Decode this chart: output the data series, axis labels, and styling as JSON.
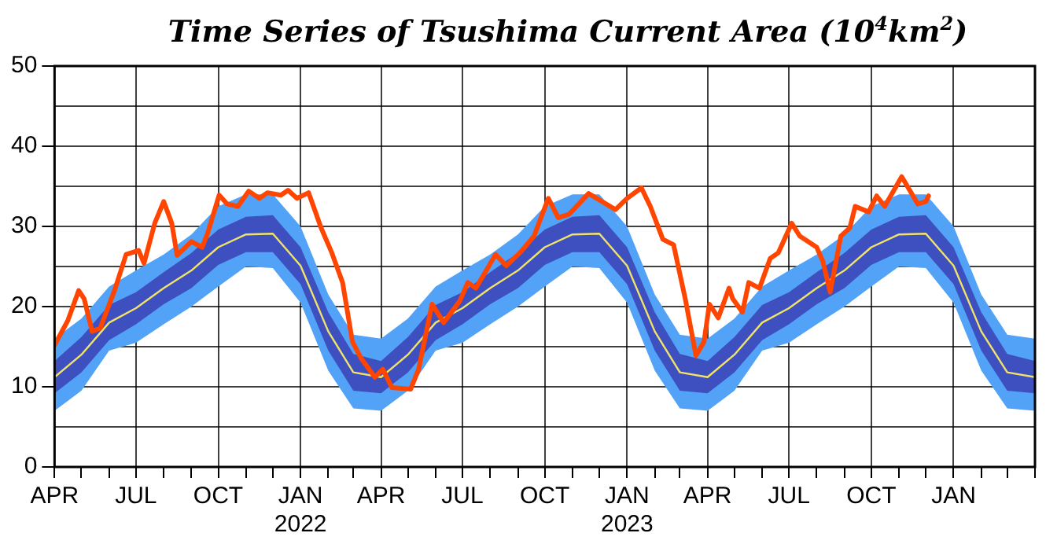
{
  "chart_data": {
    "type": "line",
    "title": "Time Series of Tsushima Current Area (10$^{4}$km$^{2}$)",
    "xlim": [
      "2021-04-01",
      "2024-04-01"
    ],
    "xticks": [
      {
        "value": "2021-04-01",
        "label": "APR"
      },
      {
        "value": "2021-05-01",
        "label": null
      },
      {
        "value": "2021-06-01",
        "label": null
      },
      {
        "value": "2021-07-01",
        "label": "JUL"
      },
      {
        "value": "2021-08-01",
        "label": null
      },
      {
        "value": "2021-09-01",
        "label": null
      },
      {
        "value": "2021-10-01",
        "label": "OCT"
      },
      {
        "value": "2021-11-01",
        "label": null
      },
      {
        "value": "2021-12-01",
        "label": null
      },
      {
        "value": "2022-01-01",
        "label": "JAN\n2022"
      },
      {
        "value": "2022-02-01",
        "label": null
      },
      {
        "value": "2022-03-01",
        "label": null
      },
      {
        "value": "2022-04-01",
        "label": "APR"
      },
      {
        "value": "2022-05-01",
        "label": null
      },
      {
        "value": "2022-06-01",
        "label": null
      },
      {
        "value": "2022-07-01",
        "label": "JUL"
      },
      {
        "value": "2022-08-01",
        "label": null
      },
      {
        "value": "2022-09-01",
        "label": null
      },
      {
        "value": "2022-10-01",
        "label": "OCT"
      },
      {
        "value": "2022-11-01",
        "label": null
      },
      {
        "value": "2022-12-01",
        "label": null
      },
      {
        "value": "2023-01-01",
        "label": "JAN\n2023"
      },
      {
        "value": "2023-02-01",
        "label": null
      },
      {
        "value": "2023-03-01",
        "label": null
      },
      {
        "value": "2023-04-01",
        "label": "APR"
      },
      {
        "value": "2023-05-01",
        "label": null
      },
      {
        "value": "2023-06-01",
        "label": null
      },
      {
        "value": "2023-07-01",
        "label": "JUL"
      },
      {
        "value": "2023-08-01",
        "label": null
      },
      {
        "value": "2023-09-01",
        "label": null
      },
      {
        "value": "2023-10-01",
        "label": "OCT"
      },
      {
        "value": "2023-11-01",
        "label": null
      },
      {
        "value": "2023-12-01",
        "label": null
      },
      {
        "value": "2024-01-01",
        "label": "JAN"
      },
      {
        "value": "2024-02-01",
        "label": null
      },
      {
        "value": "2024-03-01",
        "label": null
      },
      {
        "value": "2024-04-01",
        "label": null
      }
    ],
    "ylim": [
      0,
      50
    ],
    "yticks": [
      0,
      {
        "value": 5,
        "label": null
      },
      10,
      {
        "value": 15,
        "label": null
      },
      20,
      {
        "value": 25,
        "label": null
      },
      30,
      {
        "value": 35,
        "label": null
      },
      40,
      {
        "value": 45,
        "label": null
      },
      50
    ],
    "grid": true,
    "legend": false,
    "marker": "none",
    "line_style": "solid",
    "series": [
      {
        "type": "area",
        "color": "#52a3f7",
        "values": [
          null,
          null,
          null,
          null,
          null,
          null,
          null,
          null,
          null,
          null,
          null,
          null,
          null,
          null,
          null,
          null,
          null,
          null,
          null,
          null,
          null,
          null,
          null,
          null,
          null,
          null,
          null,
          null,
          null,
          null,
          null,
          null,
          null,
          null,
          null,
          null,
          null
        ],
        "x": [
          "2021-04-01",
          "2021-05-01",
          "2021-06-01",
          "2021-07-01",
          "2021-08-01",
          "2021-09-01",
          "2021-10-01",
          "2021-11-01",
          "2021-12-01",
          "2022-01-01",
          "2022-02-01",
          "2022-03-01",
          "2022-04-01",
          "2022-05-01",
          "2022-06-01",
          "2022-07-01",
          "2022-08-01",
          "2022-09-01",
          "2022-10-01",
          "2022-11-01",
          "2022-12-01",
          "2023-01-01",
          "2023-02-01",
          "2023-03-01",
          "2023-04-01",
          "2023-05-01",
          "2023-06-01",
          "2023-07-01",
          "2023-08-01",
          "2023-09-01",
          "2023-10-01",
          "2023-11-01",
          "2023-12-01",
          "2024-01-01",
          "2024-02-01",
          "2024-03-01",
          "2024-04-01"
        ],
        "upper": [
          16,
          18.5,
          22.5,
          24.5,
          26.5,
          29,
          32.5,
          34,
          34,
          30,
          21.5,
          16.5,
          16,
          18.5,
          22.5,
          24.5,
          26.5,
          29,
          32.5,
          34,
          34,
          30,
          21.5,
          16.5,
          16,
          18.5,
          22.5,
          24.5,
          26.5,
          29,
          32.5,
          34,
          34,
          30,
          21.5,
          16.5,
          16
        ],
        "lower": [
          7,
          9.5,
          14.5,
          15.5,
          17.8,
          20,
          22.5,
          25,
          24.8,
          20.5,
          12,
          7.3,
          7,
          9.5,
          14.5,
          15.5,
          17.8,
          20,
          22.5,
          25,
          24.8,
          20.5,
          12,
          7.3,
          7,
          9.5,
          14.5,
          15.5,
          17.8,
          20,
          22.5,
          25,
          24.8,
          20.5,
          12,
          7.3,
          7
        ]
      },
      {
        "type": "area",
        "color": "#3e4fc0",
        "values": [
          null,
          null,
          null,
          null,
          null,
          null,
          null,
          null,
          null,
          null,
          null,
          null,
          null,
          null,
          null,
          null,
          null,
          null,
          null,
          null,
          null,
          null,
          null,
          null,
          null,
          null,
          null,
          null,
          null,
          null,
          null,
          null,
          null,
          null,
          null,
          null,
          null
        ],
        "x": [
          "2021-04-01",
          "2021-05-01",
          "2021-06-01",
          "2021-07-01",
          "2021-08-01",
          "2021-09-01",
          "2021-10-01",
          "2021-11-01",
          "2021-12-01",
          "2022-01-01",
          "2022-02-01",
          "2022-03-01",
          "2022-04-01",
          "2022-05-01",
          "2022-06-01",
          "2022-07-01",
          "2022-08-01",
          "2022-09-01",
          "2022-10-01",
          "2022-11-01",
          "2022-12-01",
          "2023-01-01",
          "2023-02-01",
          "2023-03-01",
          "2023-04-01",
          "2023-05-01",
          "2023-06-01",
          "2023-07-01",
          "2023-08-01",
          "2023-09-01",
          "2023-10-01",
          "2023-11-01",
          "2023-12-01",
          "2024-01-01",
          "2024-02-01",
          "2024-03-01",
          "2024-04-01"
        ],
        "upper": [
          13.2,
          16.2,
          20.2,
          21.8,
          24.3,
          26.7,
          29.6,
          31.2,
          31.4,
          27.4,
          19.3,
          14.1,
          13.2,
          16.2,
          20.2,
          21.8,
          24.3,
          26.7,
          29.6,
          31.2,
          31.4,
          27.4,
          19.3,
          14.1,
          13.2,
          16.2,
          20.2,
          21.8,
          24.3,
          26.7,
          29.6,
          31.2,
          31.4,
          27.4,
          19.3,
          14.1,
          13.2
        ],
        "lower": [
          9.2,
          11.8,
          15.8,
          17.8,
          20.3,
          22.3,
          25.2,
          26.8,
          26.8,
          22.8,
          14.5,
          9.5,
          9.2,
          11.8,
          15.8,
          17.8,
          20.3,
          22.3,
          25.2,
          26.8,
          26.8,
          22.8,
          14.5,
          9.5,
          9.2,
          11.8,
          15.8,
          17.8,
          20.3,
          22.3,
          25.2,
          26.8,
          26.8,
          22.8,
          14.5,
          9.5,
          9.2
        ]
      },
      {
        "type": "line",
        "color": "#f0e368",
        "x": [
          "2021-04-01",
          "2021-05-01",
          "2021-06-01",
          "2021-07-01",
          "2021-08-01",
          "2021-09-01",
          "2021-10-01",
          "2021-11-01",
          "2021-12-01",
          "2022-01-01",
          "2022-02-01",
          "2022-03-01",
          "2022-04-01",
          "2022-05-01",
          "2022-06-01",
          "2022-07-01",
          "2022-08-01",
          "2022-09-01",
          "2022-10-01",
          "2022-11-01",
          "2022-12-01",
          "2023-01-01",
          "2023-02-01",
          "2023-03-01",
          "2023-04-01",
          "2023-05-01",
          "2023-06-01",
          "2023-07-01",
          "2023-08-01",
          "2023-09-01",
          "2023-10-01",
          "2023-11-01",
          "2023-12-01",
          "2024-01-01",
          "2024-02-01",
          "2024-03-01",
          "2024-04-01"
        ],
        "values": [
          11.2,
          14,
          18,
          19.8,
          22.3,
          24.5,
          27.4,
          29,
          29.1,
          25.1,
          16.9,
          11.8,
          11.2,
          14,
          18,
          19.8,
          22.3,
          24.5,
          27.4,
          29,
          29.1,
          25.1,
          16.9,
          11.8,
          11.2,
          14,
          18,
          19.8,
          22.3,
          24.5,
          27.4,
          29,
          29.1,
          25.1,
          16.9,
          11.8,
          11.2
        ]
      },
      {
        "type": "line",
        "color": "#ff4500",
        "x": [
          "2021-04-01",
          "2021-04-16",
          "2021-04-28",
          "2021-05-04",
          "2021-05-13",
          "2021-05-22",
          "2021-06-07",
          "2021-06-20",
          "2021-07-04",
          "2021-07-10",
          "2021-07-22",
          "2021-08-01",
          "2021-08-10",
          "2021-08-16",
          "2021-09-01",
          "2021-09-13",
          "2021-09-19",
          "2021-10-02",
          "2021-10-11",
          "2021-10-23",
          "2021-11-04",
          "2021-11-16",
          "2021-11-25",
          "2021-12-10",
          "2021-12-18",
          "2021-12-28",
          "2022-01-10",
          "2022-01-24",
          "2022-02-05",
          "2022-02-17",
          "2022-02-28",
          "2022-03-10",
          "2022-03-25",
          "2022-04-03",
          "2022-04-13",
          "2022-05-04",
          "2022-05-13",
          "2022-05-28",
          "2022-06-10",
          "2022-06-28",
          "2022-07-07",
          "2022-07-16",
          "2022-08-07",
          "2022-08-19",
          "2022-09-04",
          "2022-09-19",
          "2022-10-05",
          "2022-10-16",
          "2022-10-28",
          "2022-11-19",
          "2022-12-01",
          "2022-12-19",
          "2023-01-01",
          "2023-01-17",
          "2023-01-27",
          "2023-02-10",
          "2023-02-22",
          "2023-03-07",
          "2023-03-19",
          "2023-03-28",
          "2023-04-03",
          "2023-04-13",
          "2023-04-25",
          "2023-04-29",
          "2023-05-10",
          "2023-05-17",
          "2023-05-29",
          "2023-06-10",
          "2023-06-19",
          "2023-07-04",
          "2023-07-13",
          "2023-08-01",
          "2023-08-08",
          "2023-08-16",
          "2023-08-28",
          "2023-09-07",
          "2023-09-13",
          "2023-09-28",
          "2023-10-07",
          "2023-10-16",
          "2023-11-04",
          "2023-11-22",
          "2023-12-01",
          "2023-12-04"
        ],
        "values": [
          15.2,
          18.3,
          22,
          21,
          16.9,
          17.3,
          22,
          26.5,
          27,
          25.4,
          30.4,
          33.1,
          30.4,
          26.4,
          28.1,
          27.4,
          29.1,
          33.9,
          32.8,
          32.5,
          34.4,
          33.5,
          34.2,
          33.9,
          34.5,
          33.5,
          34.2,
          29.8,
          26.7,
          23,
          15.6,
          13.5,
          11.2,
          12.2,
          9.9,
          9.7,
          12.2,
          20.3,
          18,
          20.7,
          23,
          22.3,
          26.5,
          25.1,
          26.8,
          28.8,
          33.5,
          31.1,
          31.5,
          34.1,
          33.3,
          32.1,
          33.5,
          34.8,
          32.5,
          28.4,
          27.7,
          21,
          13.9,
          15.6,
          20.3,
          18.6,
          22.3,
          21,
          19.3,
          23,
          22.3,
          26,
          26.7,
          30.4,
          28.8,
          27.4,
          25.6,
          21.8,
          28.8,
          29.8,
          32.5,
          31.8,
          33.8,
          32.5,
          36.2,
          32.8,
          33.1,
          33.8
        ]
      }
    ]
  }
}
